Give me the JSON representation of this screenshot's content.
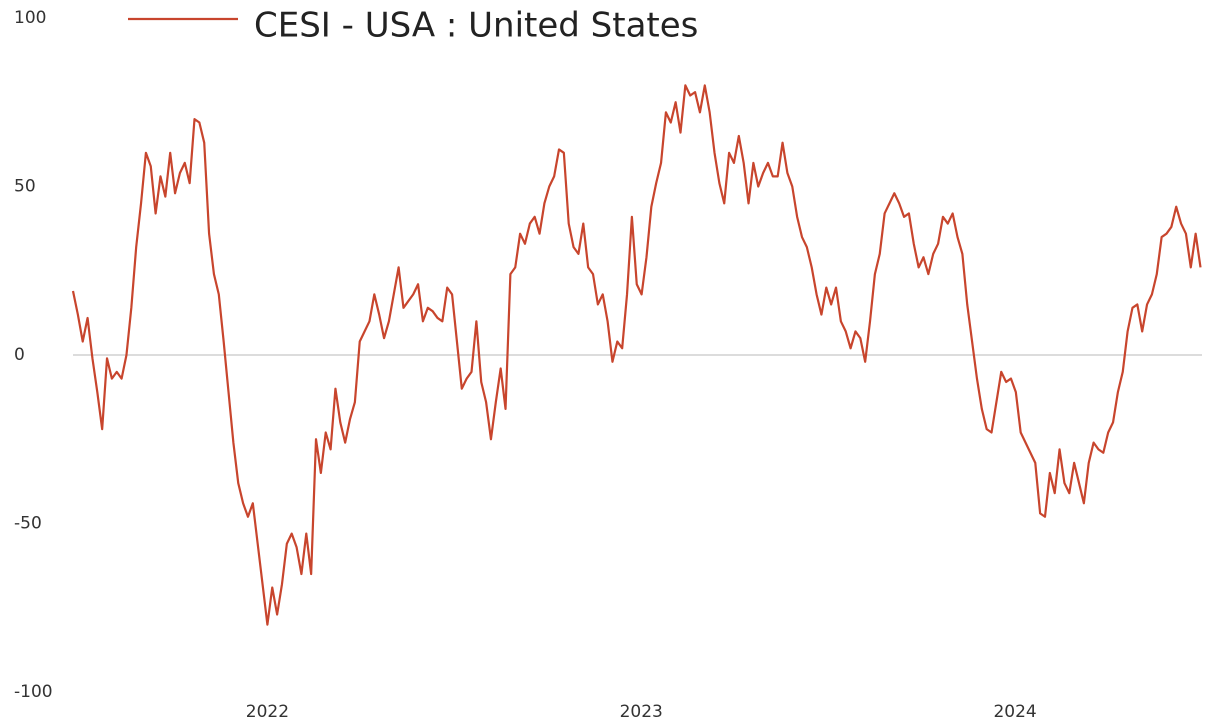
{
  "chart_data": {
    "type": "line",
    "series": [
      {
        "name": "CESI - USA : United States",
        "color": "#c8452d",
        "values": [
          19,
          12,
          4,
          11,
          -1,
          -11,
          -22,
          -1,
          -7,
          -5,
          -7,
          0,
          14,
          32,
          45,
          60,
          56,
          42,
          53,
          47,
          60,
          48,
          54,
          57,
          51,
          70,
          69,
          63,
          36,
          24,
          18,
          4,
          -11,
          -26,
          -38,
          -44,
          -48,
          -44,
          -56,
          -68,
          -80,
          -69,
          -77,
          -68,
          -56,
          -53,
          -57,
          -65,
          -53,
          -65,
          -25,
          -35,
          -23,
          -28,
          -10,
          -20,
          -26,
          -19,
          -14,
          4,
          7,
          10,
          18,
          12,
          5,
          10,
          18,
          26,
          14,
          16,
          18,
          21,
          10,
          14,
          13,
          11,
          10,
          20,
          18,
          4,
          -10,
          -7,
          -5,
          10,
          -8,
          -14,
          -25,
          -14,
          -4,
          -16,
          24,
          26,
          36,
          33,
          39,
          41,
          36,
          45,
          50,
          53,
          61,
          60,
          39,
          32,
          30,
          39,
          26,
          24,
          15,
          18,
          10,
          -2,
          4,
          2,
          18,
          41,
          21,
          18,
          29,
          44,
          51,
          57,
          72,
          69,
          75,
          66,
          80,
          77,
          78,
          72,
          80,
          72,
          60,
          51,
          45,
          60,
          57,
          65,
          57,
          45,
          57,
          50,
          54,
          57,
          53,
          53,
          63,
          54,
          50,
          41,
          35,
          32,
          26,
          18,
          12,
          20,
          15,
          20,
          10,
          7,
          2,
          7,
          5,
          -2,
          10,
          24,
          30,
          42,
          45,
          48,
          45,
          41,
          42,
          33,
          26,
          29,
          24,
          30,
          33,
          41,
          39,
          42,
          35,
          30,
          15,
          4,
          -7,
          -16,
          -22,
          -23,
          -14,
          -5,
          -8,
          -7,
          -11,
          -23,
          -26,
          -29,
          -32,
          -47,
          -48,
          -35,
          -41,
          -28,
          -38,
          -41,
          -32,
          -38,
          -44,
          -32,
          -26,
          -28,
          -29,
          -23,
          -20,
          -11,
          -5,
          7,
          14,
          15,
          7,
          15,
          18,
          24,
          35,
          36,
          38,
          44,
          39,
          36,
          26,
          36,
          26
        ]
      }
    ],
    "x": [
      2021.48,
      2021.493,
      2021.506,
      2021.519,
      2021.532,
      2021.545,
      2021.558,
      2021.571,
      2021.584,
      2021.597,
      2021.61,
      2021.623,
      2021.636,
      2021.649,
      2021.662,
      2021.675,
      2021.688,
      2021.701,
      2021.714,
      2021.727,
      2021.74,
      2021.753,
      2021.766,
      2021.779,
      2021.792,
      2021.805,
      2021.818,
      2021.831,
      2021.844,
      2021.857,
      2021.87,
      2021.883,
      2021.896,
      2021.909,
      2021.922,
      2021.935,
      2021.948,
      2021.961,
      2021.974,
      2021.987,
      2022.0,
      2022.013,
      2022.026,
      2022.039,
      2022.052,
      2022.065,
      2022.078,
      2022.091,
      2022.104,
      2022.117,
      2022.13,
      2022.143,
      2022.156,
      2022.169,
      2022.182,
      2022.195,
      2022.208,
      2022.221,
      2022.234,
      2022.247,
      2022.26,
      2022.273,
      2022.286,
      2022.299,
      2022.312,
      2022.325,
      2022.338,
      2022.351,
      2022.364,
      2022.377,
      2022.39,
      2022.403,
      2022.416,
      2022.429,
      2022.442,
      2022.455,
      2022.468,
      2022.481,
      2022.494,
      2022.507,
      2022.52,
      2022.533,
      2022.546,
      2022.559,
      2022.572,
      2022.585,
      2022.598,
      2022.611,
      2022.624,
      2022.637,
      2022.65,
      2022.663,
      2022.676,
      2022.689,
      2022.702,
      2022.715,
      2022.728,
      2022.741,
      2022.754,
      2022.767,
      2022.78,
      2022.793,
      2022.806,
      2022.819,
      2022.832,
      2022.845,
      2022.858,
      2022.871,
      2022.884,
      2022.897,
      2022.91,
      2022.923,
      2022.936,
      2022.949,
      2022.962,
      2022.975,
      2022.988,
      2023.001,
      2023.014,
      2023.027,
      2023.04,
      2023.053,
      2023.066,
      2023.079,
      2023.092,
      2023.105,
      2023.118,
      2023.131,
      2023.144,
      2023.157,
      2023.17,
      2023.183,
      2023.196,
      2023.209,
      2023.222,
      2023.235,
      2023.248,
      2023.261,
      2023.274,
      2023.287,
      2023.3,
      2023.313,
      2023.326,
      2023.339,
      2023.352,
      2023.365,
      2023.378,
      2023.391,
      2023.404,
      2023.417,
      2023.43,
      2023.443,
      2023.456,
      2023.469,
      2023.482,
      2023.495,
      2023.508,
      2023.521,
      2023.534,
      2023.547,
      2023.56,
      2023.573,
      2023.586,
      2023.599,
      2023.612,
      2023.625,
      2023.638,
      2023.651,
      2023.664,
      2023.677,
      2023.69,
      2023.703,
      2023.716,
      2023.729,
      2023.742,
      2023.755,
      2023.768,
      2023.781,
      2023.794,
      2023.807,
      2023.82,
      2023.833,
      2023.846,
      2023.859,
      2023.872,
      2023.885,
      2023.898,
      2023.911,
      2023.924,
      2023.937,
      2023.95,
      2023.963,
      2023.976,
      2023.989,
      2024.002,
      2024.015,
      2024.028,
      2024.041,
      2024.054,
      2024.067,
      2024.08,
      2024.093,
      2024.106,
      2024.119,
      2024.132,
      2024.145,
      2024.158,
      2024.171,
      2024.184,
      2024.197,
      2024.21,
      2024.223,
      2024.236,
      2024.249,
      2024.262,
      2024.275,
      2024.288,
      2024.301,
      2024.314,
      2024.327,
      2024.34,
      2024.353,
      2024.366,
      2024.379,
      2024.392,
      2024.405,
      2024.418,
      2024.431,
      2024.444,
      2024.457,
      2024.47,
      2024.483,
      2024.496
    ],
    "xlim": [
      2021.48,
      2024.5
    ],
    "xticks": [
      2022,
      2023,
      2024
    ],
    "ylim": [
      -100,
      100
    ],
    "yticks": [
      -100,
      -50,
      0,
      50,
      100
    ],
    "zero_line": true,
    "legend": "top"
  }
}
